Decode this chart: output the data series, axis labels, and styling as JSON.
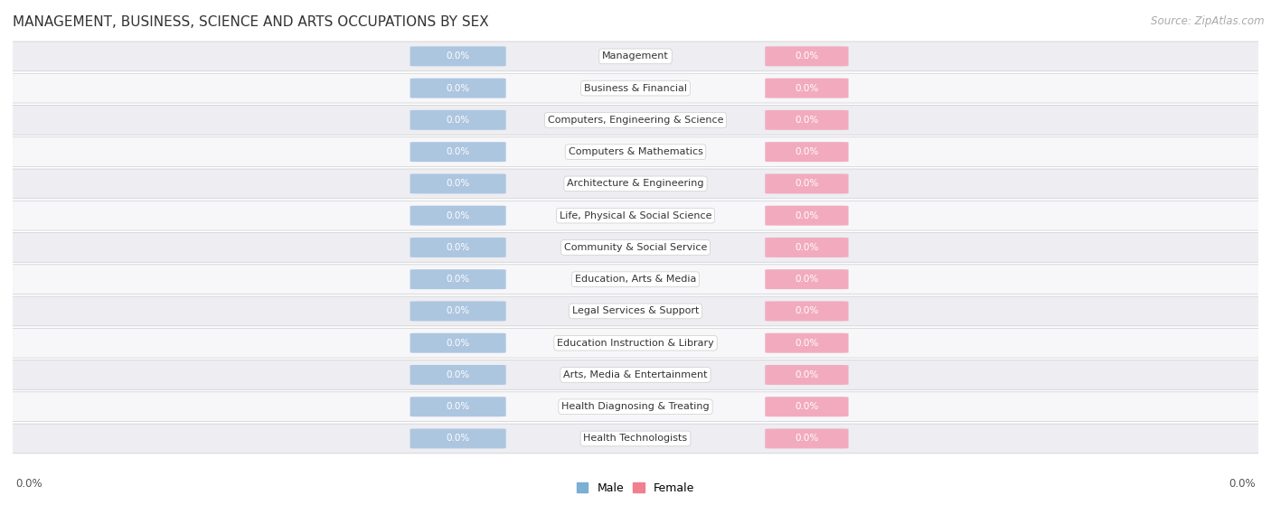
{
  "title": "MANAGEMENT, BUSINESS, SCIENCE AND ARTS OCCUPATIONS BY SEX",
  "source": "Source: ZipAtlas.com",
  "categories": [
    "Management",
    "Business & Financial",
    "Computers, Engineering & Science",
    "Computers & Mathematics",
    "Architecture & Engineering",
    "Life, Physical & Social Science",
    "Community & Social Service",
    "Education, Arts & Media",
    "Legal Services & Support",
    "Education Instruction & Library",
    "Arts, Media & Entertainment",
    "Health Diagnosing & Treating",
    "Health Technologists"
  ],
  "male_values": [
    0.0,
    0.0,
    0.0,
    0.0,
    0.0,
    0.0,
    0.0,
    0.0,
    0.0,
    0.0,
    0.0,
    0.0,
    0.0
  ],
  "female_values": [
    0.0,
    0.0,
    0.0,
    0.0,
    0.0,
    0.0,
    0.0,
    0.0,
    0.0,
    0.0,
    0.0,
    0.0,
    0.0
  ],
  "male_color": "#adc6e0",
  "female_color": "#f2abbe",
  "row_bg_even": "#ededf2",
  "row_bg_odd": "#f7f7fa",
  "background_color": "#ffffff",
  "title_fontsize": 11,
  "source_fontsize": 8.5,
  "legend_male_color": "#7bafd4",
  "legend_female_color": "#f08090",
  "axis_label_color": "#555555",
  "category_fontsize": 8,
  "value_fontsize": 7.5
}
